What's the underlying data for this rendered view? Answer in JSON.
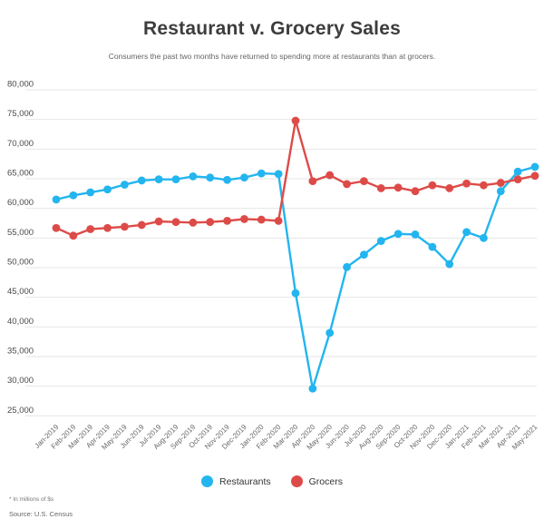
{
  "header": {
    "title": "Restaurant v. Grocery Sales",
    "subtitle": "Consumers the past two months have returned to spending more at restaurants than at grocers."
  },
  "legend": [
    {
      "label": "Restaurants",
      "color": "#23b5ef"
    },
    {
      "label": "Grocers",
      "color": "#dd4b48"
    }
  ],
  "footnotes": {
    "note": "* In millions of $s",
    "source": "Source: U.S. Census"
  },
  "chart_data": {
    "type": "line",
    "title": "Restaurant v. Grocery Sales",
    "subtitle": "Consumers the past two months have returned to spending more at restaurants than at grocers.",
    "units": "millions of $s",
    "categories": [
      "Jan-2019",
      "Feb-2019",
      "Mar-2019",
      "Apr-2019",
      "May-2019",
      "Jun-2019",
      "Jul-2019",
      "Aug-2019",
      "Sep-2019",
      "Oct-2019",
      "Nov-2019",
      "Dec-2019",
      "Jan-2020",
      "Feb-2020",
      "Mar-2020",
      "Apr-2020",
      "May-2020",
      "Jun-2020",
      "Jul-2020",
      "Aug-2020",
      "Sep-2020",
      "Oct-2020",
      "Nov-2020",
      "Dec-2020",
      "Jan-2021",
      "Feb-2021",
      "Mar-2021",
      "Apr-2021",
      "May-2021"
    ],
    "series": [
      {
        "name": "Restaurants",
        "color": "#23b5ef",
        "values": [
          61500,
          62200,
          62700,
          63200,
          64000,
          64700,
          64900,
          64900,
          65400,
          65200,
          64800,
          65200,
          65900,
          65800,
          45700,
          29600,
          39000,
          50100,
          52200,
          54500,
          55700,
          55600,
          53500,
          50600,
          56000,
          55000,
          62900,
          66200,
          67000
        ]
      },
      {
        "name": "Grocers",
        "color": "#dd4b48",
        "values": [
          56700,
          55400,
          56500,
          56700,
          56900,
          57200,
          57800,
          57700,
          57600,
          57700,
          57900,
          58200,
          58100,
          57900,
          74800,
          64600,
          65600,
          64100,
          64600,
          63400,
          63500,
          62900,
          63900,
          63400,
          64200,
          63900,
          64300,
          64900,
          65500
        ]
      }
    ],
    "ylim": [
      25000,
      80000
    ],
    "ytick_step": 5000,
    "yticks": [
      25000,
      30000,
      35000,
      40000,
      45000,
      50000,
      55000,
      60000,
      65000,
      70000,
      75000,
      80000
    ],
    "grid": true,
    "gridline_color": "#e6e6e6",
    "legend_position": "bottom",
    "xlabel": "",
    "ylabel": ""
  }
}
